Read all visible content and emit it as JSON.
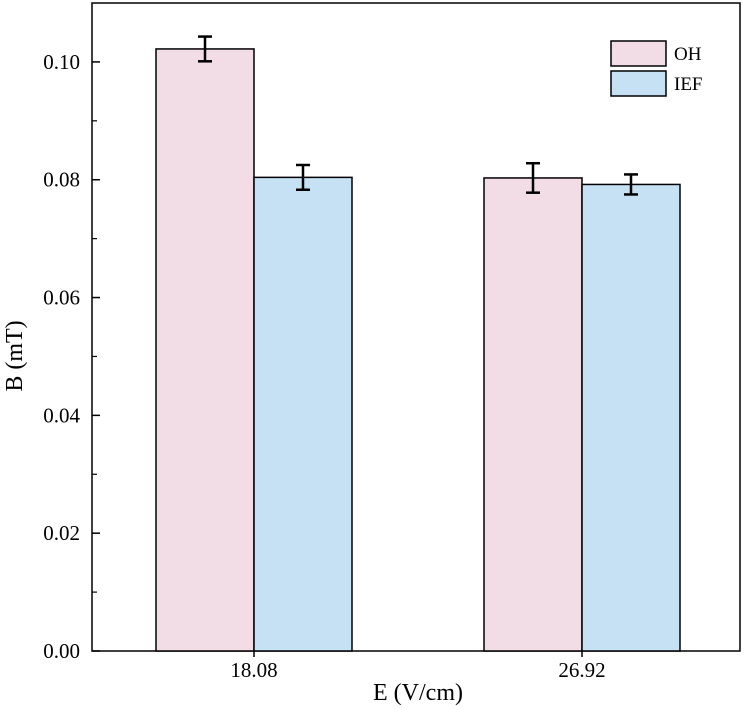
{
  "chart_data": {
    "type": "bar",
    "title": "",
    "xlabel": "E (V/cm)",
    "ylabel": "B (mT)",
    "categories": [
      "18.08",
      "26.92"
    ],
    "series": [
      {
        "name": "OH",
        "color": "#f2dde6",
        "values": [
          0.1022,
          0.0803
        ],
        "errors": [
          0.0021,
          0.0025
        ]
      },
      {
        "name": "IEF",
        "color": "#c7e1f4",
        "values": [
          0.0804,
          0.0792
        ],
        "errors": [
          0.0021,
          0.0017
        ]
      }
    ],
    "ylim": [
      0,
      0.11
    ],
    "yticks": [
      "0.00",
      "0.02",
      "0.04",
      "0.06",
      "0.08",
      "0.10"
    ],
    "ytick_values": [
      0,
      0.02,
      0.04,
      0.06,
      0.08,
      0.1
    ],
    "grid": false,
    "legend_position": "top-right"
  }
}
